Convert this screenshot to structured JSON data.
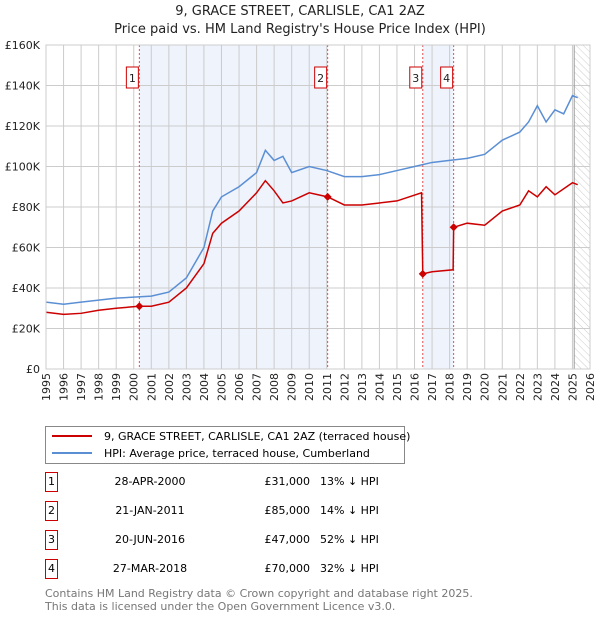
{
  "chart_data": {
    "type": "line",
    "title": "9, GRACE STREET, CARLISLE, CA1 2AZ",
    "subtitle": "Price paid vs. HM Land Registry's House Price Index (HPI)",
    "xlim": [
      1995,
      2026
    ],
    "ylim": [
      0,
      160000
    ],
    "x_ticks": [
      "1995",
      "1996",
      "1997",
      "1998",
      "1999",
      "2000",
      "2001",
      "2002",
      "2003",
      "2004",
      "2005",
      "2006",
      "2007",
      "2008",
      "2009",
      "2010",
      "2011",
      "2012",
      "2013",
      "2014",
      "2015",
      "2016",
      "2017",
      "2018",
      "2019",
      "2020",
      "2021",
      "2022",
      "2023",
      "2024",
      "2025",
      "2026"
    ],
    "y_ticks": [
      {
        "v": 0,
        "label": "£0"
      },
      {
        "v": 20000,
        "label": "£20K"
      },
      {
        "v": 40000,
        "label": "£40K"
      },
      {
        "v": 60000,
        "label": "£60K"
      },
      {
        "v": 80000,
        "label": "£80K"
      },
      {
        "v": 100000,
        "label": "£100K"
      },
      {
        "v": 120000,
        "label": "£120K"
      },
      {
        "v": 140000,
        "label": "£140K"
      },
      {
        "v": 160000,
        "label": "£160K"
      }
    ],
    "series": [
      {
        "name": "9, GRACE STREET, CARLISLE, CA1 2AZ (terraced house)",
        "color": "#cc0000",
        "x": [
          1995,
          1996,
          1997,
          1998,
          1999,
          2000.3,
          2001,
          2002,
          2003,
          2004,
          2004.5,
          2005,
          2006,
          2007,
          2007.5,
          2008,
          2008.5,
          2009,
          2010,
          2011.05,
          2012,
          2013,
          2014,
          2015,
          2016.4,
          2016.47,
          2017,
          2018.2,
          2018.23,
          2019,
          2020,
          2021,
          2022,
          2022.5,
          2023,
          2023.5,
          2024,
          2025,
          2025.3
        ],
        "y": [
          28000,
          27000,
          27500,
          29000,
          30000,
          31000,
          31000,
          33000,
          40000,
          52000,
          67000,
          72000,
          78000,
          87000,
          93000,
          88000,
          82000,
          83000,
          87000,
          85000,
          81000,
          81000,
          82000,
          83000,
          87000,
          47000,
          48000,
          49000,
          70000,
          72000,
          71000,
          78000,
          81000,
          88000,
          85000,
          90000,
          86000,
          92000,
          91000
        ]
      },
      {
        "name": "HPI: Average price, terraced house, Cumberland",
        "color": "#5b8fd4",
        "x": [
          1995,
          1996,
          1997,
          1998,
          1999,
          2000,
          2001,
          2002,
          2003,
          2004,
          2004.5,
          2005,
          2006,
          2007,
          2007.5,
          2008,
          2008.5,
          2009,
          2010,
          2011,
          2012,
          2013,
          2014,
          2015,
          2016,
          2017,
          2018,
          2019,
          2020,
          2021,
          2022,
          2022.5,
          2023,
          2023.5,
          2024,
          2024.5,
          2025,
          2025.3
        ],
        "y": [
          33000,
          32000,
          33000,
          34000,
          35000,
          35500,
          36000,
          38000,
          45000,
          60000,
          78000,
          85000,
          90000,
          97000,
          108000,
          103000,
          105000,
          97000,
          100000,
          98000,
          95000,
          95000,
          96000,
          98000,
          100000,
          102000,
          103000,
          104000,
          106000,
          113000,
          117000,
          122000,
          130000,
          122000,
          128000,
          126000,
          135000,
          134000
        ]
      }
    ],
    "sales": [
      {
        "n": "1",
        "x": 2000.32,
        "price": 31000,
        "date": "28-APR-2000",
        "price_label": "£31,000",
        "hpi": "13% ↓ HPI"
      },
      {
        "n": "2",
        "x": 2011.05,
        "price": 85000,
        "date": "21-JAN-2011",
        "price_label": "£85,000",
        "hpi": "14% ↓ HPI"
      },
      {
        "n": "3",
        "x": 2016.47,
        "price": 47000,
        "date": "20-JUN-2016",
        "price_label": "£47,000",
        "hpi": "52% ↓ HPI"
      },
      {
        "n": "4",
        "x": 2018.23,
        "price": 70000,
        "date": "27-MAR-2018",
        "price_label": "£70,000",
        "hpi": "32% ↓ HPI"
      }
    ],
    "shaded": [
      [
        2000.32,
        2011.05
      ],
      [
        2016.47,
        2018.23
      ]
    ],
    "forecast_from": 2025.1,
    "legend": [
      "9, GRACE STREET, CARLISLE, CA1 2AZ (terraced house)",
      "HPI: Average price, terraced house, Cumberland"
    ]
  },
  "footer": [
    "Contains HM Land Registry data © Crown copyright and database right 2025.",
    "This data is licensed under the Open Government Licence v3.0."
  ]
}
